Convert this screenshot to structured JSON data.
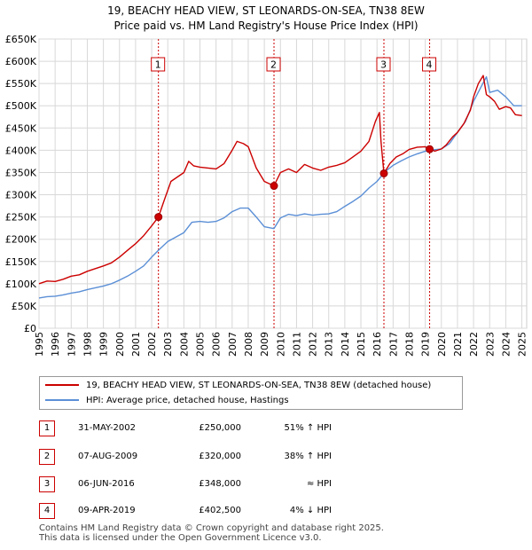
{
  "chart_data": {
    "type": "line",
    "title": "19, BEACHY HEAD VIEW, ST LEONARDS-ON-SEA, TN38 8EW",
    "subtitle": "Price paid vs. HM Land Registry's House Price Index (HPI)",
    "xlim": [
      1995,
      2025.3
    ],
    "ylim": [
      0,
      650000
    ],
    "y_ticks": [
      0,
      50000,
      100000,
      150000,
      200000,
      250000,
      300000,
      350000,
      400000,
      450000,
      500000,
      550000,
      600000,
      650000
    ],
    "y_tick_labels": [
      "£0",
      "£50K",
      "£100K",
      "£150K",
      "£200K",
      "£250K",
      "£300K",
      "£350K",
      "£400K",
      "£450K",
      "£500K",
      "£550K",
      "£600K",
      "£650K"
    ],
    "x_ticks": [
      1995,
      1996,
      1997,
      1998,
      1999,
      2000,
      2001,
      2002,
      2003,
      2004,
      2005,
      2006,
      2007,
      2008,
      2009,
      2010,
      2011,
      2012,
      2013,
      2014,
      2015,
      2016,
      2017,
      2018,
      2019,
      2020,
      2021,
      2022,
      2023,
      2024,
      2025
    ],
    "x_tick_labels": [
      "1995",
      "1996",
      "1997",
      "1998",
      "1999",
      "2000",
      "2001",
      "2002",
      "2003",
      "2004",
      "2005",
      "2006",
      "2007",
      "2008",
      "2009",
      "2010",
      "2011",
      "2012",
      "2013",
      "2014",
      "2015",
      "2016",
      "2017",
      "2018",
      "2019",
      "2020",
      "2021",
      "2022",
      "2023",
      "2024",
      "2025"
    ],
    "grid": true,
    "series": [
      {
        "name": "19, BEACHY HEAD VIEW, ST LEONARDS-ON-SEA, TN38 8EW (detached house)",
        "color": "#cc0000",
        "x": [
          1995,
          1995.5,
          1996,
          1996.5,
          1997,
          1997.5,
          1998,
          1998.5,
          1999,
          1999.5,
          2000,
          2000.5,
          2001,
          2001.5,
          2002,
          2002.42,
          2002.8,
          2003.2,
          2003.6,
          2004,
          2004.3,
          2004.6,
          2005,
          2005.5,
          2006,
          2006.5,
          2007,
          2007.3,
          2007.7,
          2008,
          2008.5,
          2009,
          2009.6,
          2010,
          2010.5,
          2011,
          2011.5,
          2012,
          2012.5,
          2013,
          2013.5,
          2014,
          2014.5,
          2015,
          2015.5,
          2015.9,
          2016.15,
          2016.25,
          2016.43,
          2016.8,
          2017.2,
          2017.6,
          2018,
          2018.5,
          2019,
          2019.27,
          2019.6,
          2020,
          2020.3,
          2020.7,
          2021,
          2021.4,
          2021.8,
          2022,
          2022.3,
          2022.6,
          2022.8,
          2023,
          2023.3,
          2023.6,
          2024,
          2024.3,
          2024.6,
          2025
        ],
        "values": [
          100000,
          106000,
          105000,
          110000,
          117000,
          120000,
          128000,
          134000,
          140000,
          147000,
          160000,
          175000,
          190000,
          208000,
          230000,
          250000,
          290000,
          330000,
          340000,
          350000,
          375000,
          365000,
          362000,
          360000,
          358000,
          370000,
          400000,
          420000,
          415000,
          408000,
          360000,
          330000,
          320000,
          350000,
          358000,
          350000,
          368000,
          360000,
          355000,
          362000,
          366000,
          372000,
          385000,
          398000,
          420000,
          465000,
          485000,
          420000,
          348000,
          370000,
          385000,
          392000,
          402000,
          407000,
          408000,
          402500,
          398000,
          403000,
          412000,
          430000,
          440000,
          460000,
          490000,
          520000,
          550000,
          568000,
          525000,
          520000,
          510000,
          492000,
          498000,
          495000,
          480000,
          478000
        ]
      },
      {
        "name": "HPI: Average price, detached house, Hastings",
        "color": "#5b8fd6",
        "x": [
          1995,
          1995.5,
          1996,
          1996.5,
          1997,
          1997.5,
          1998,
          1998.5,
          1999,
          1999.5,
          2000,
          2000.5,
          2001,
          2001.5,
          2002,
          2002.5,
          2003,
          2003.5,
          2004,
          2004.5,
          2005,
          2005.5,
          2006,
          2006.5,
          2007,
          2007.5,
          2008,
          2008.5,
          2009,
          2009.6,
          2010,
          2010.5,
          2011,
          2011.5,
          2012,
          2012.5,
          2013,
          2013.5,
          2014,
          2014.5,
          2015,
          2015.5,
          2016,
          2016.5,
          2017,
          2017.5,
          2018,
          2018.5,
          2019,
          2019.5,
          2020,
          2020.5,
          2021,
          2021.5,
          2022,
          2022.5,
          2022.8,
          2023,
          2023.5,
          2024,
          2024.5,
          2025
        ],
        "values": [
          68000,
          71000,
          72000,
          75000,
          79000,
          82000,
          87000,
          91000,
          95000,
          100000,
          108000,
          117000,
          128000,
          140000,
          160000,
          178000,
          195000,
          205000,
          215000,
          238000,
          240000,
          238000,
          240000,
          248000,
          262000,
          270000,
          270000,
          250000,
          228000,
          224000,
          248000,
          256000,
          253000,
          257000,
          254000,
          256000,
          257000,
          262000,
          274000,
          285000,
          297000,
          315000,
          330000,
          352000,
          366000,
          376000,
          385000,
          392000,
          398000,
          401000,
          403000,
          415000,
          440000,
          465000,
          510000,
          545000,
          565000,
          530000,
          535000,
          520000,
          500000,
          500000
        ]
      }
    ],
    "sale_markers": [
      {
        "label": "1",
        "x": 2002.42,
        "y": 250000
      },
      {
        "label": "2",
        "x": 2009.6,
        "y": 320000
      },
      {
        "label": "3",
        "x": 2016.43,
        "y": 348000
      },
      {
        "label": "4",
        "x": 2019.27,
        "y": 402500
      }
    ]
  },
  "legend": {
    "property_label": "19, BEACHY HEAD VIEW, ST LEONARDS-ON-SEA, TN38 8EW (detached house)",
    "hpi_label": "HPI: Average price, detached house, Hastings"
  },
  "sales": [
    {
      "num": "1",
      "date": "31-MAY-2002",
      "price": "£250,000",
      "hpi": "51% ↑ HPI"
    },
    {
      "num": "2",
      "date": "07-AUG-2009",
      "price": "£320,000",
      "hpi": "38% ↑ HPI"
    },
    {
      "num": "3",
      "date": "06-JUN-2016",
      "price": "£348,000",
      "hpi": "≈ HPI"
    },
    {
      "num": "4",
      "date": "09-APR-2019",
      "price": "£402,500",
      "hpi": "4% ↓ HPI"
    }
  ],
  "footer": {
    "line1": "Contains HM Land Registry data © Crown copyright and database right 2025.",
    "line2": "This data is licensed under the Open Government Licence v3.0."
  },
  "colors": {
    "property": "#cc0000",
    "hpi": "#5b8fd6",
    "grid": "#d8d8d8",
    "plot_bg": "#ffffff"
  }
}
